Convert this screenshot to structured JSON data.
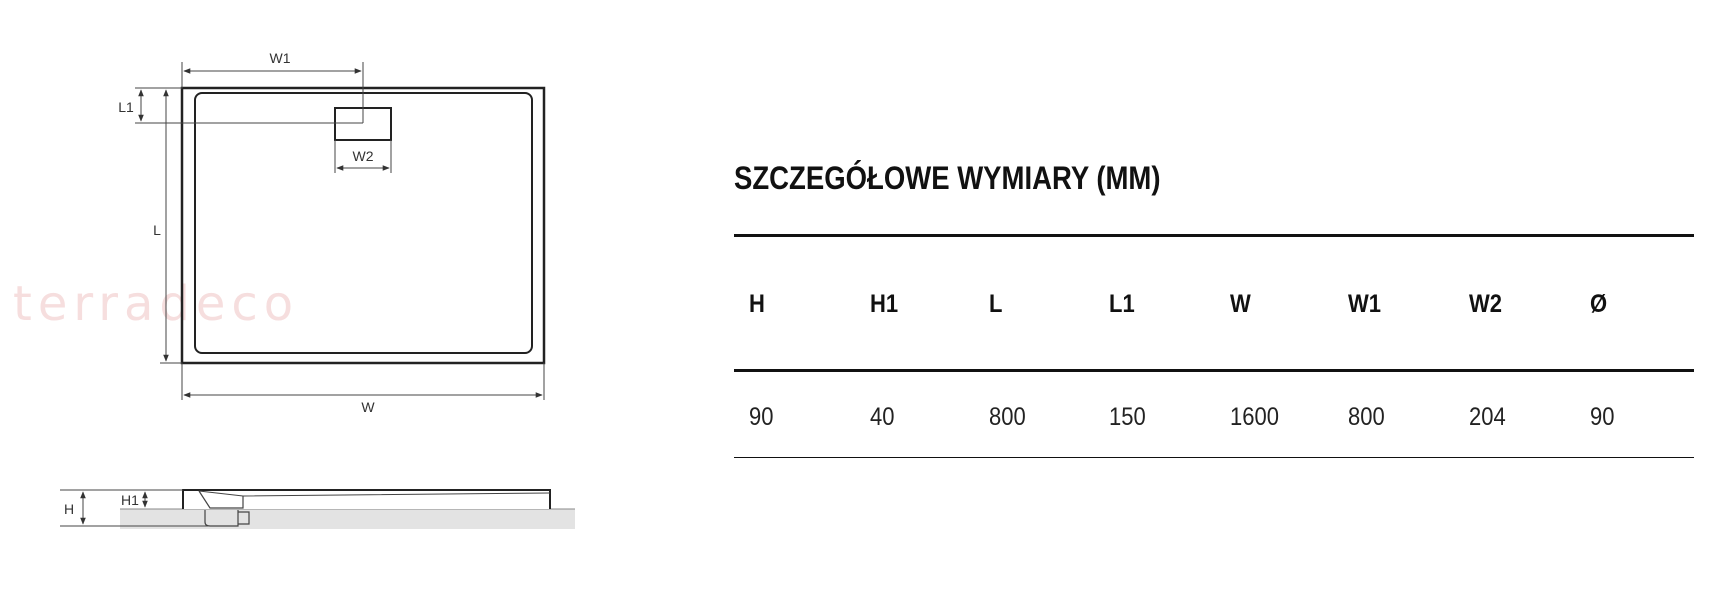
{
  "watermark": "terradeco",
  "diagram": {
    "labels": {
      "W1": "W1",
      "L1": "L1",
      "W2": "W2",
      "L": "L",
      "W": "W",
      "H": "H",
      "H1": "H1"
    }
  },
  "table": {
    "title": "SZCZEGÓŁOWE WYMIARY (MM)",
    "headers": [
      "H",
      "H1",
      "L",
      "L1",
      "W",
      "W1",
      "W2",
      "Ø"
    ],
    "values": [
      "90",
      "40",
      "800",
      "150",
      "1600",
      "800",
      "204",
      "90"
    ]
  }
}
